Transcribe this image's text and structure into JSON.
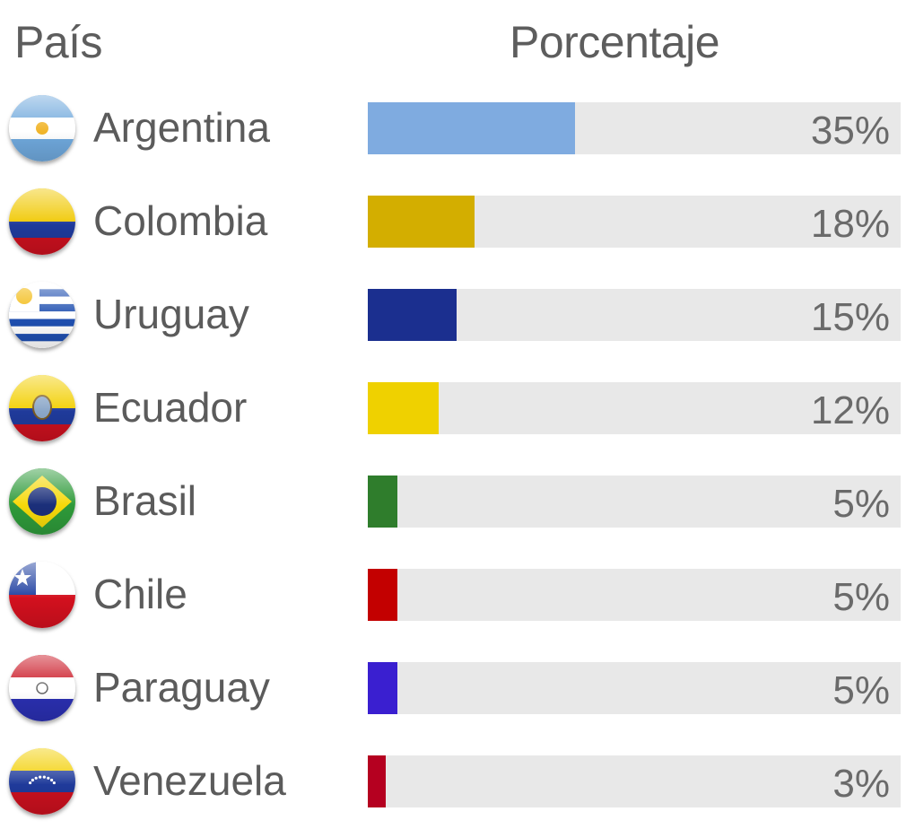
{
  "header": {
    "country_label": "País",
    "percent_label": "Porcentaje"
  },
  "chart_data": {
    "type": "bar",
    "orientation": "horizontal",
    "categories": [
      "Argentina",
      "Colombia",
      "Uruguay",
      "Ecuador",
      "Brasil",
      "Chile",
      "Paraguay",
      "Venezuela"
    ],
    "values": [
      35,
      18,
      15,
      12,
      5,
      5,
      5,
      3
    ],
    "value_labels": [
      "35%",
      "18%",
      "15%",
      "12%",
      "5%",
      "5%",
      "5%",
      "3%"
    ],
    "colors": [
      "#7fabe0",
      "#d3ae00",
      "#1b2f8f",
      "#efd100",
      "#2f7d2c",
      "#c30000",
      "#3a1fd0",
      "#b50020"
    ],
    "flag_icons": [
      "argentina-flag-icon",
      "colombia-flag-icon",
      "uruguay-flag-icon",
      "ecuador-flag-icon",
      "brazil-flag-icon",
      "chile-flag-icon",
      "paraguay-flag-icon",
      "venezuela-flag-icon"
    ],
    "xlim": [
      0,
      90
    ],
    "track_color": "#e8e8e8"
  }
}
